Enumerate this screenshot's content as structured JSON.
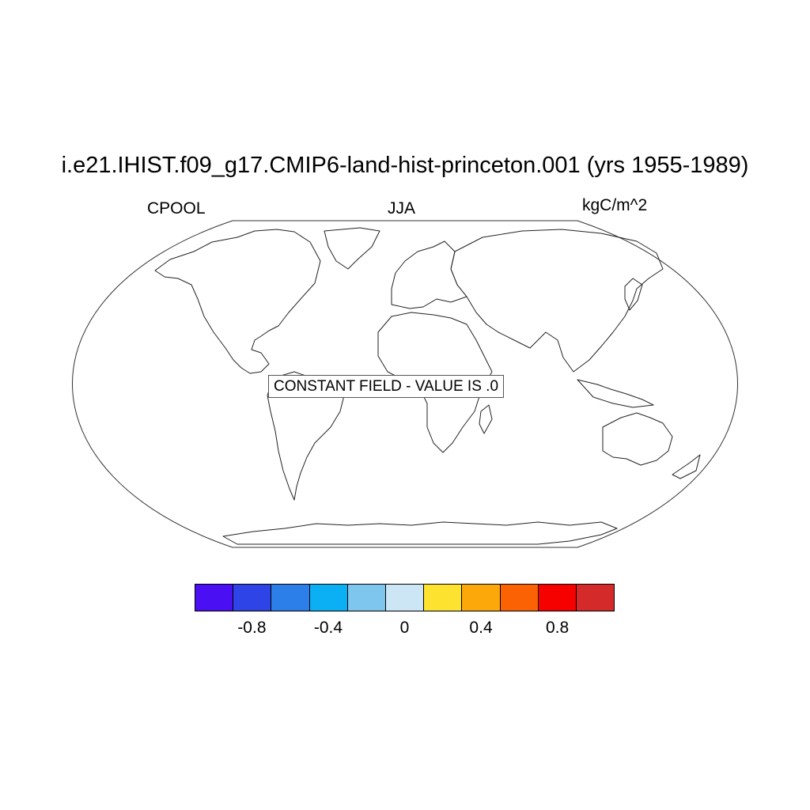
{
  "title": "i.e21.IHIST.f09_g17.CMIP6-land-hist-princeton.001 (yrs 1955-1989)",
  "left_label": "CPOOL",
  "center_label": "JJA",
  "right_label": "kgC/m^2",
  "map": {
    "projection": "robinson",
    "coastlines": true,
    "field": "constant"
  },
  "annotation": "CONSTANT FIELD - VALUE IS .0",
  "colorbar": {
    "colors": [
      "#4a0ff2",
      "#2f44e6",
      "#2c7ee9",
      "#0ab0f3",
      "#7ec6ee",
      "#cce6f6",
      "#fde230",
      "#fca80a",
      "#fb6204",
      "#f60000",
      "#d42a2a"
    ],
    "tick_labels": [
      "-0.8",
      "-0.4",
      "0",
      "0.4",
      "0.8"
    ],
    "tick_values": [
      -0.8,
      -0.4,
      0,
      0.4,
      0.8
    ],
    "range": [
      -1.1,
      1.1
    ]
  }
}
